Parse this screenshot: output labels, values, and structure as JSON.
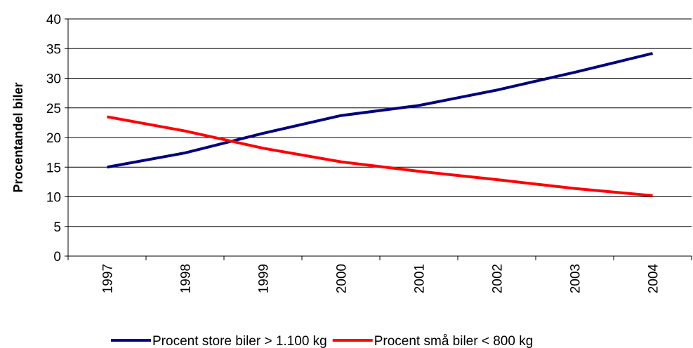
{
  "chart_data": {
    "type": "line",
    "y_label": "Procentandel biler",
    "categories": [
      "1997",
      "1998",
      "1999",
      "2000",
      "2001",
      "2002",
      "2003",
      "2004"
    ],
    "series": [
      {
        "name": "Procent store biler > 1.100 kg",
        "color": "#000080",
        "values": [
          15.0,
          17.4,
          20.7,
          23.7,
          25.4,
          28.0,
          31.0,
          34.2
        ]
      },
      {
        "name": "Procent små biler < 800 kg",
        "color": "#ff0000",
        "values": [
          23.5,
          21.1,
          18.2,
          15.9,
          14.3,
          12.9,
          11.4,
          10.2
        ]
      }
    ],
    "ylim": [
      0,
      40
    ],
    "yticks": [
      0,
      5,
      10,
      15,
      20,
      25,
      30,
      35,
      40
    ],
    "grid": true,
    "legend": "bottom"
  }
}
